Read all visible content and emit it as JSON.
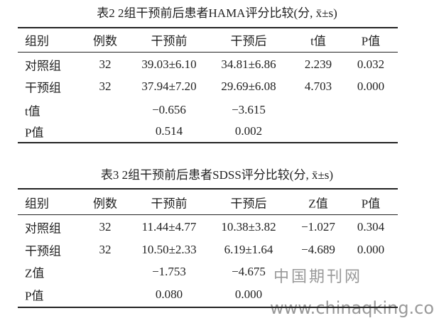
{
  "tables": [
    {
      "title": "表2  2组干预前后患者HAMA评分比较(分, x̄±s)",
      "header": [
        "组别",
        "例数",
        "干预前",
        "干预后",
        "t值",
        "P值"
      ],
      "rows": [
        [
          "对照组",
          "32",
          "39.03±6.10",
          "34.81±6.86",
          "2.239",
          "0.032"
        ],
        [
          "干预组",
          "32",
          "37.94±7.20",
          "29.69±6.08",
          "4.703",
          "0.000"
        ],
        {
          "0": "t值",
          "2": "−0.656",
          "3": "−3.615"
        },
        {
          "0": "P值",
          "2": "0.514",
          "3": "0.002"
        }
      ]
    },
    {
      "title": "表3  2组干预前后患者SDSS评分比较(分, x̄±s)",
      "header": [
        "组别",
        "例数",
        "干预前",
        "干预后",
        "Z值",
        "P值"
      ],
      "rows": [
        [
          "对照组",
          "32",
          "11.44±4.77",
          "10.38±3.82",
          "−1.027",
          "0.304"
        ],
        [
          "干预组",
          "32",
          "10.50±2.33",
          "6.19±1.64",
          "−4.689",
          "0.000"
        ],
        {
          "0": "Z值",
          "2": "−1.753",
          "3": "−4.675"
        },
        {
          "0": "P值",
          "2": "0.080",
          "3": "0.000"
        }
      ]
    }
  ],
  "watermark": {
    "name": "中国期刊网",
    "url": "www.chinaqking.com"
  }
}
